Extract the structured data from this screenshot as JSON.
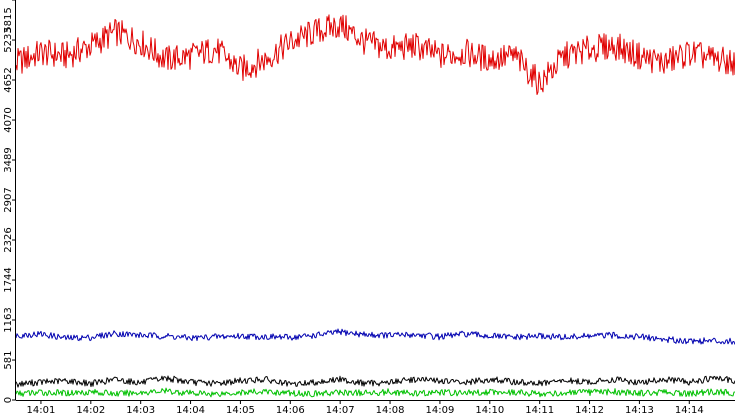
{
  "chart_data": {
    "type": "line",
    "title": "",
    "xlabel": "",
    "ylabel": "",
    "ylim": [
      0,
      5815
    ],
    "xlim": [
      "14:00:30",
      "14:14:55"
    ],
    "grid": false,
    "legend": "none",
    "y_ticks": [
      0,
      581,
      1163,
      1744,
      2326,
      2907,
      3489,
      4070,
      4652,
      5233,
      5815
    ],
    "y_tick_labels": [
      "0",
      "581",
      "1163",
      "1744",
      "2326",
      "2907",
      "3489",
      "4070",
      "4652",
      "5233",
      "5815"
    ],
    "x_ticks": [
      "14:01",
      "14:02",
      "14:03",
      "14:04",
      "14:05",
      "14:06",
      "14:07",
      "14:08",
      "14:09",
      "14:10",
      "14:11",
      "14:12",
      "14:13",
      "14:14"
    ],
    "x_tick_labels": [
      "14:01",
      "14:02",
      "14:03",
      "14:04",
      "14:05",
      "14:06",
      "14:07",
      "14:08",
      "14:09",
      "14:10",
      "14:11",
      "14:12",
      "14:13",
      "14:14"
    ],
    "series": [
      {
        "color": "#e00000",
        "x": [
          "14:00:30",
          "14:01:00",
          "14:01:30",
          "14:02:00",
          "14:02:30",
          "14:03:00",
          "14:03:30",
          "14:04:00",
          "14:04:30",
          "14:05:00",
          "14:05:30",
          "14:06:00",
          "14:06:30",
          "14:07:00",
          "14:07:30",
          "14:08:00",
          "14:08:30",
          "14:09:00",
          "14:09:30",
          "14:10:00",
          "14:10:30",
          "14:11:00",
          "14:11:30",
          "14:12:00",
          "14:12:30",
          "14:13:00",
          "14:13:30",
          "14:14:00",
          "14:14:30",
          "14:14:55"
        ],
        "y": [
          4900,
          5050,
          5000,
          5150,
          5350,
          5200,
          4950,
          5000,
          5100,
          4800,
          4950,
          5200,
          5350,
          5450,
          5200,
          5100,
          5150,
          5000,
          5050,
          4950,
          5000,
          4600,
          5000,
          5100,
          5150,
          5000,
          4900,
          5050,
          4950,
          4900
        ]
      },
      {
        "color": "#0000b0",
        "x": [
          "14:00:30",
          "14:01:00",
          "14:01:30",
          "14:02:00",
          "14:02:30",
          "14:03:00",
          "14:03:30",
          "14:04:00",
          "14:04:30",
          "14:05:00",
          "14:05:30",
          "14:06:00",
          "14:06:30",
          "14:07:00",
          "14:07:30",
          "14:08:00",
          "14:08:30",
          "14:09:00",
          "14:09:30",
          "14:10:00",
          "14:10:30",
          "14:11:00",
          "14:11:30",
          "14:12:00",
          "14:12:30",
          "14:13:00",
          "14:13:30",
          "14:14:00",
          "14:14:30",
          "14:14:55"
        ],
        "y": [
          940,
          960,
          900,
          910,
          970,
          940,
          930,
          900,
          920,
          930,
          920,
          910,
          940,
          990,
          950,
          940,
          950,
          920,
          960,
          930,
          910,
          930,
          910,
          930,
          940,
          920,
          880,
          860,
          860,
          850
        ]
      },
      {
        "color": "#000000",
        "x": [
          "14:00:30",
          "14:01:00",
          "14:01:30",
          "14:02:00",
          "14:02:30",
          "14:03:00",
          "14:03:30",
          "14:04:00",
          "14:04:30",
          "14:05:00",
          "14:05:30",
          "14:06:00",
          "14:06:30",
          "14:07:00",
          "14:07:30",
          "14:08:00",
          "14:08:30",
          "14:09:00",
          "14:09:30",
          "14:10:00",
          "14:10:30",
          "14:11:00",
          "14:11:30",
          "14:12:00",
          "14:12:30",
          "14:13:00",
          "14:13:30",
          "14:14:00",
          "14:14:30",
          "14:14:55"
        ],
        "y": [
          230,
          260,
          280,
          240,
          300,
          250,
          320,
          260,
          240,
          280,
          300,
          220,
          260,
          300,
          240,
          260,
          300,
          280,
          250,
          300,
          260,
          240,
          280,
          260,
          300,
          250,
          300,
          260,
          320,
          280
        ]
      },
      {
        "color": "#00c000",
        "x": [
          "14:00:30",
          "14:01:00",
          "14:01:30",
          "14:02:00",
          "14:02:30",
          "14:03:00",
          "14:03:30",
          "14:04:00",
          "14:04:30",
          "14:05:00",
          "14:05:30",
          "14:06:00",
          "14:06:30",
          "14:07:00",
          "14:07:30",
          "14:08:00",
          "14:08:30",
          "14:09:00",
          "14:09:30",
          "14:10:00",
          "14:10:30",
          "14:11:00",
          "14:11:30",
          "14:12:00",
          "14:12:30",
          "14:13:00",
          "14:13:30",
          "14:14:00",
          "14:14:30",
          "14:14:55"
        ],
        "y": [
          90,
          110,
          100,
          120,
          90,
          110,
          130,
          100,
          90,
          110,
          120,
          100,
          90,
          110,
          100,
          120,
          90,
          110,
          100,
          120,
          110,
          90,
          100,
          110,
          120,
          100,
          110,
          90,
          120,
          100
        ]
      }
    ]
  }
}
